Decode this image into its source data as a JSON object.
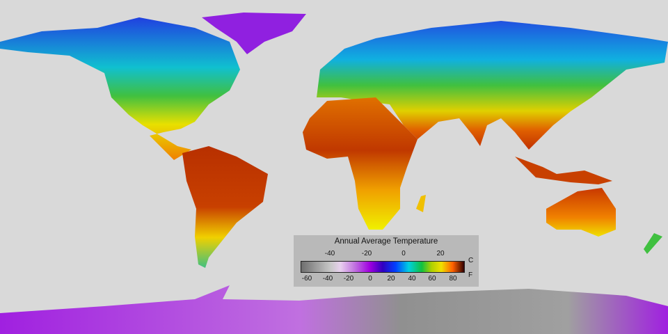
{
  "legend": {
    "title": "Annual Average Temperature",
    "celsius_unit": "C",
    "fahrenheit_unit": "F",
    "celsius_ticks": [
      "-40",
      "-20",
      "0",
      "20"
    ],
    "fahrenheit_ticks": [
      "-60",
      "-40",
      "-20",
      "0",
      "20",
      "40",
      "60",
      "80"
    ],
    "celsius_range": [
      -56,
      32
    ],
    "colormap": [
      "#6e6e6e",
      "#c8c8c8",
      "#c070e0",
      "#a000e0",
      "#3000c0",
      "#0040ff",
      "#00d0e0",
      "#10c040",
      "#f0e000",
      "#ff6000",
      "#300000"
    ]
  },
  "map": {
    "projection": "equirectangular",
    "ocean_color": "#d9d9d9"
  }
}
